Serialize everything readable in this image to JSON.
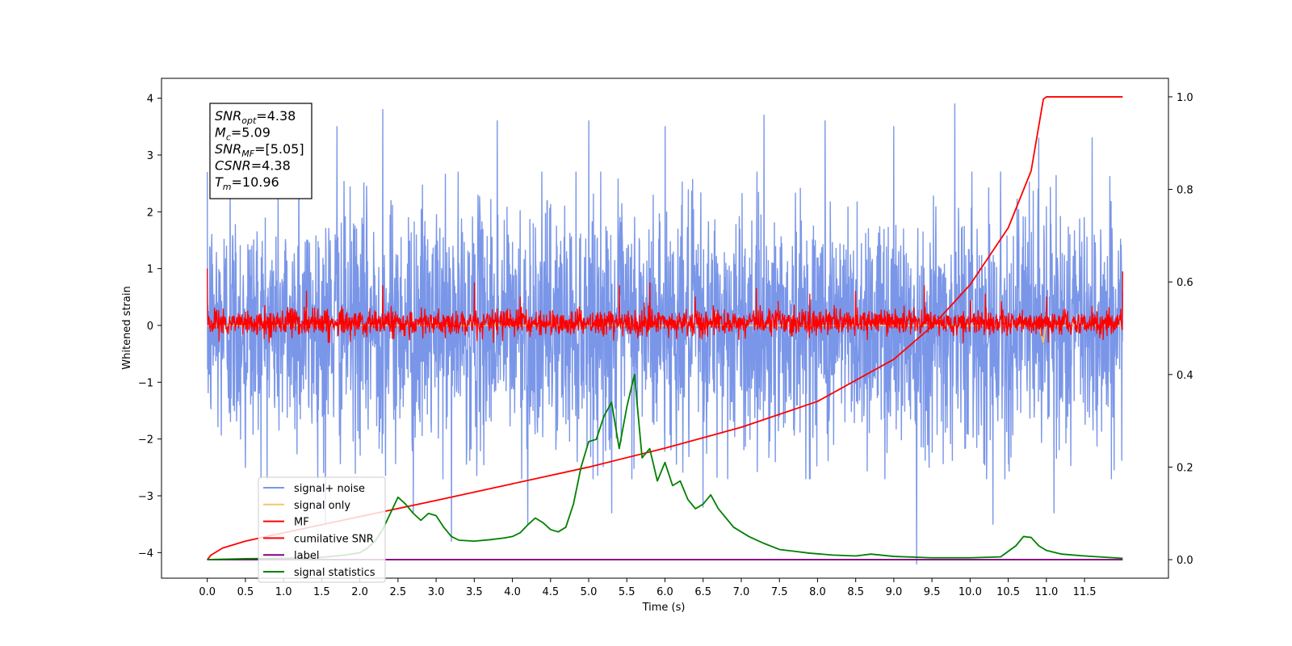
{
  "chart_data": {
    "type": "line",
    "xlabel": "Time (s)",
    "ylabel": "Whitened strain",
    "ylabel_right": "",
    "xlim": [
      -0.6,
      12.6
    ],
    "ylim": [
      -4.45,
      4.35
    ],
    "ylim_right": [
      -0.04,
      1.04
    ],
    "x_ticks": [
      "0.0",
      "0.5",
      "1.0",
      "1.5",
      "2.0",
      "2.5",
      "3.0",
      "3.5",
      "4.0",
      "4.5",
      "5.0",
      "5.5",
      "6.0",
      "6.5",
      "7.0",
      "7.5",
      "8.0",
      "8.5",
      "9.0",
      "9.5",
      "10.0",
      "10.5",
      "11.0",
      "11.5"
    ],
    "y_ticks_left": [
      "−4",
      "−3",
      "−2",
      "−1",
      "0",
      "1",
      "2",
      "3",
      "4"
    ],
    "y_ticks_right": [
      "0.0",
      "0.2",
      "0.4",
      "0.6",
      "0.8",
      "1.0"
    ],
    "grid": false,
    "legend_placement": "lower-left",
    "annotation": [
      {
        "main": "SNR",
        "sub": "opt",
        "value": "=4.38"
      },
      {
        "main": "M",
        "sub": "c",
        "value": "=5.09"
      },
      {
        "main": "SNR",
        "sub": "MF",
        "value": "=[5.05]"
      },
      {
        "main": "CSNR",
        "sub": "",
        "value": "=4.38"
      },
      {
        "main": "T",
        "sub": "m",
        "value": "=10.96"
      }
    ],
    "series": [
      {
        "name": "signal+ noise",
        "axis": "left",
        "color": "#7a96e8",
        "style": "noise",
        "x_range": [
          0.0,
          12.0
        ],
        "envelope_typical": [
          -2.0,
          2.0
        ],
        "spikes": [
          [
            0.3,
            2.8
          ],
          [
            0.5,
            -2.5
          ],
          [
            1.2,
            3.4
          ],
          [
            1.55,
            -3.5
          ],
          [
            1.7,
            3.5
          ],
          [
            2.3,
            3.8
          ],
          [
            2.7,
            -3.3
          ],
          [
            3.2,
            -3.8
          ],
          [
            3.8,
            3.6
          ],
          [
            4.2,
            -3.5
          ],
          [
            5.0,
            3.6
          ],
          [
            5.3,
            -3.3
          ],
          [
            6.0,
            3.5
          ],
          [
            6.5,
            -3.2
          ],
          [
            7.3,
            3.7
          ],
          [
            8.1,
            3.6
          ],
          [
            9.0,
            3.5
          ],
          [
            9.3,
            -4.2
          ],
          [
            9.8,
            3.9
          ],
          [
            10.3,
            -3.5
          ],
          [
            10.9,
            3.3
          ],
          [
            11.1,
            -3.3
          ],
          [
            11.6,
            3.3
          ]
        ]
      },
      {
        "name": "signal only",
        "axis": "left",
        "color": "#f5c36b",
        "style": "line",
        "x": [
          0.0,
          10.9,
          10.93,
          10.96,
          10.99,
          12.0
        ],
        "y": [
          0.0,
          0.0,
          -0.15,
          -0.3,
          0.0,
          0.0
        ]
      },
      {
        "name": "MF",
        "axis": "left",
        "color": "#ff0000",
        "style": "noise",
        "x_range": [
          0.0,
          12.0
        ],
        "envelope_typical": [
          -0.3,
          0.3
        ],
        "spikes": [
          [
            0.0,
            1.0
          ],
          [
            1.3,
            0.6
          ],
          [
            2.3,
            0.7
          ],
          [
            3.5,
            0.75
          ],
          [
            4.1,
            0.5
          ],
          [
            5.4,
            0.7
          ],
          [
            5.8,
            0.75
          ],
          [
            6.4,
            0.5
          ],
          [
            7.2,
            0.65
          ],
          [
            7.9,
            0.55
          ],
          [
            8.5,
            0.6
          ],
          [
            9.4,
            0.7
          ],
          [
            10.2,
            0.55
          ],
          [
            11.0,
            0.5
          ],
          [
            12.0,
            0.95
          ]
        ]
      },
      {
        "name": "cumilative SNR",
        "axis": "right",
        "color": "#ff0000",
        "style": "line",
        "x": [
          0.0,
          0.05,
          0.2,
          0.5,
          1.0,
          2.0,
          3.0,
          4.0,
          5.0,
          6.0,
          7.0,
          8.0,
          9.0,
          9.5,
          10.0,
          10.5,
          10.8,
          10.96,
          11.0,
          12.0
        ],
        "y": [
          0.0,
          0.01,
          0.025,
          0.04,
          0.058,
          0.093,
          0.128,
          0.164,
          0.2,
          0.241,
          0.286,
          0.342,
          0.433,
          0.504,
          0.594,
          0.717,
          0.84,
          0.995,
          1.0,
          1.0
        ]
      },
      {
        "name": "label",
        "axis": "right",
        "color": "#800080",
        "style": "line",
        "x": [
          0.0,
          12.0
        ],
        "y": [
          0.0,
          0.0
        ]
      },
      {
        "name": "signal statistics",
        "axis": "right",
        "color": "#008000",
        "style": "line",
        "x": [
          0.0,
          0.5,
          1.0,
          1.5,
          1.8,
          2.0,
          2.1,
          2.2,
          2.3,
          2.4,
          2.5,
          2.6,
          2.7,
          2.8,
          2.9,
          3.0,
          3.1,
          3.2,
          3.3,
          3.5,
          3.7,
          3.9,
          4.0,
          4.1,
          4.2,
          4.3,
          4.4,
          4.5,
          4.6,
          4.7,
          4.8,
          4.9,
          5.0,
          5.1,
          5.2,
          5.3,
          5.4,
          5.5,
          5.6,
          5.7,
          5.8,
          5.9,
          6.0,
          6.1,
          6.2,
          6.3,
          6.4,
          6.5,
          6.6,
          6.7,
          6.8,
          6.9,
          7.0,
          7.1,
          7.3,
          7.5,
          7.7,
          7.9,
          8.2,
          8.5,
          8.7,
          9.0,
          9.5,
          10.0,
          10.4,
          10.6,
          10.7,
          10.8,
          10.9,
          11.0,
          11.2,
          11.5,
          12.0
        ],
        "y": [
          0.0,
          0.002,
          0.003,
          0.005,
          0.01,
          0.015,
          0.025,
          0.04,
          0.065,
          0.1,
          0.135,
          0.12,
          0.1,
          0.085,
          0.1,
          0.095,
          0.07,
          0.05,
          0.042,
          0.04,
          0.043,
          0.047,
          0.05,
          0.058,
          0.075,
          0.09,
          0.08,
          0.065,
          0.06,
          0.07,
          0.12,
          0.2,
          0.255,
          0.26,
          0.31,
          0.34,
          0.24,
          0.33,
          0.4,
          0.22,
          0.24,
          0.17,
          0.21,
          0.16,
          0.17,
          0.13,
          0.11,
          0.12,
          0.14,
          0.11,
          0.09,
          0.07,
          0.06,
          0.05,
          0.035,
          0.022,
          0.018,
          0.014,
          0.01,
          0.008,
          0.012,
          0.007,
          0.004,
          0.004,
          0.006,
          0.03,
          0.05,
          0.048,
          0.03,
          0.02,
          0.012,
          0.008,
          0.003
        ]
      }
    ]
  }
}
